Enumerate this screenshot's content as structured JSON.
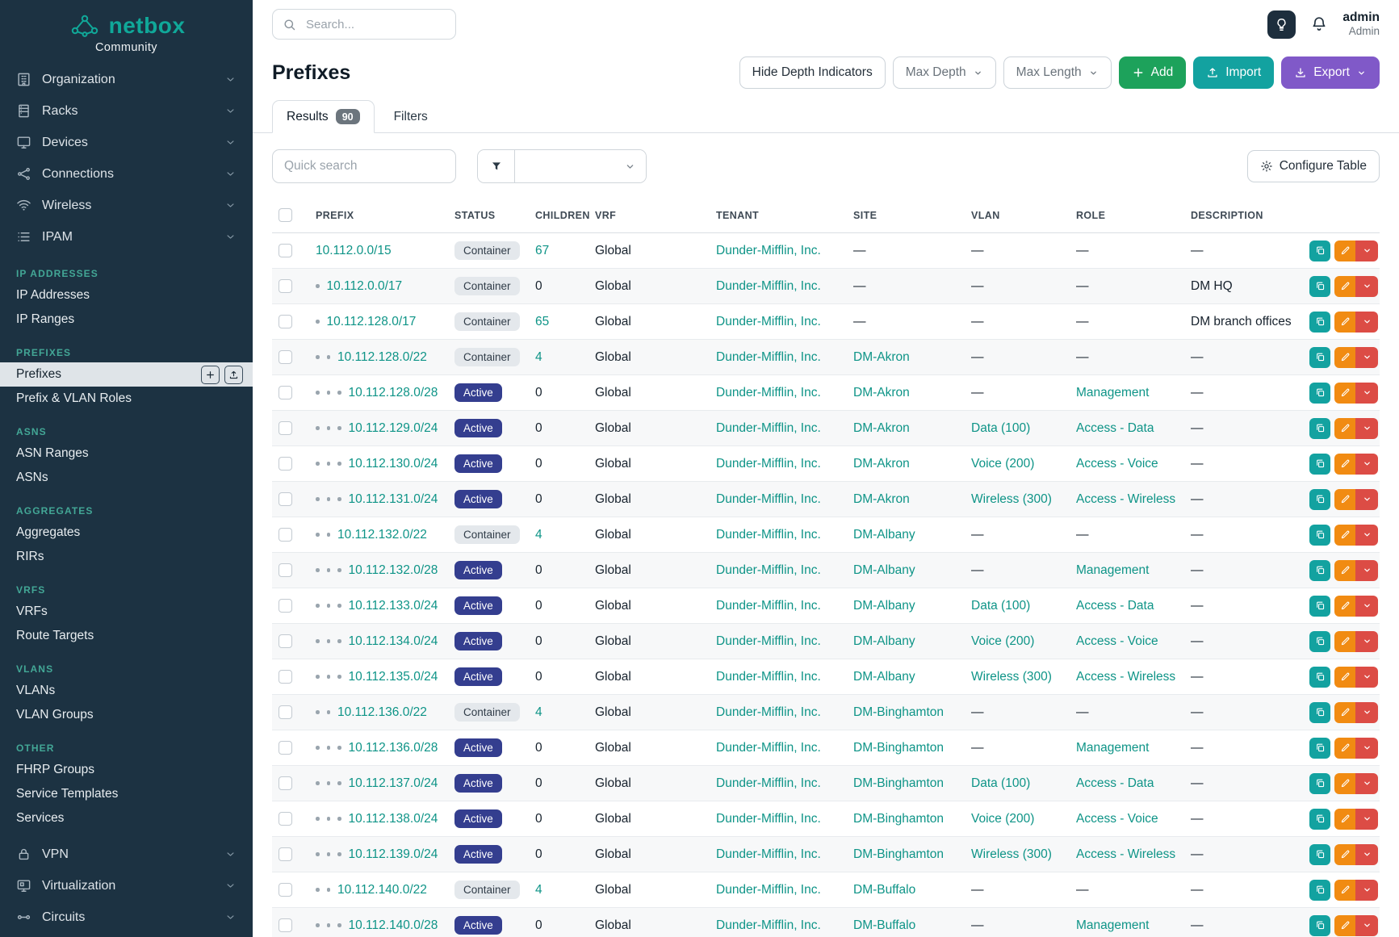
{
  "colors": {
    "accent_teal": "#0e9487",
    "brand_teal": "#10a899",
    "sidebar_bg": "#1c3242",
    "status_active_bg": "#343e8f",
    "status_container_bg": "#e4e8ec",
    "add_green": "#1da25b",
    "import_teal": "#13a2a0",
    "export_purple": "#8059c8",
    "edit_orange": "#f18b12",
    "delete_red": "#dc4c45"
  },
  "sidebar": {
    "brand": "netbox",
    "brand_subtitle": "Community",
    "top_items": [
      {
        "label": "Organization",
        "icon": "organization-icon"
      },
      {
        "label": "Racks",
        "icon": "racks-icon"
      },
      {
        "label": "Devices",
        "icon": "devices-icon"
      },
      {
        "label": "Connections",
        "icon": "connections-icon"
      },
      {
        "label": "Wireless",
        "icon": "wireless-icon"
      },
      {
        "label": "IPAM",
        "icon": "ipam-icon"
      }
    ],
    "sections": [
      {
        "header": "IP ADDRESSES",
        "items": [
          {
            "label": "IP Addresses"
          },
          {
            "label": "IP Ranges"
          }
        ]
      },
      {
        "header": "PREFIXES",
        "items": [
          {
            "label": "Prefixes",
            "active": true,
            "action_icons": [
              "plus-icon",
              "import-icon"
            ]
          },
          {
            "label": "Prefix & VLAN Roles"
          }
        ]
      },
      {
        "header": "ASNS",
        "items": [
          {
            "label": "ASN Ranges"
          },
          {
            "label": "ASNs"
          }
        ]
      },
      {
        "header": "AGGREGATES",
        "items": [
          {
            "label": "Aggregates"
          },
          {
            "label": "RIRs"
          }
        ]
      },
      {
        "header": "VRFS",
        "items": [
          {
            "label": "VRFs"
          },
          {
            "label": "Route Targets"
          }
        ]
      },
      {
        "header": "VLANS",
        "items": [
          {
            "label": "VLANs"
          },
          {
            "label": "VLAN Groups"
          }
        ]
      },
      {
        "header": "OTHER",
        "items": [
          {
            "label": "FHRP Groups"
          },
          {
            "label": "Service Templates"
          },
          {
            "label": "Services"
          }
        ]
      }
    ],
    "bottom_items": [
      {
        "label": "VPN",
        "icon": "vpn-icon"
      },
      {
        "label": "Virtualization",
        "icon": "virtualization-icon"
      },
      {
        "label": "Circuits",
        "icon": "circuits-icon"
      }
    ]
  },
  "topbar": {
    "search_placeholder": "Search...",
    "user_name": "admin",
    "user_role": "Admin"
  },
  "page": {
    "title": "Prefixes",
    "toolbar": {
      "hide_depth_label": "Hide Depth Indicators",
      "max_depth_label": "Max Depth",
      "max_length_label": "Max Length",
      "add_label": "Add",
      "import_label": "Import",
      "export_label": "Export"
    },
    "tabs": [
      {
        "label": "Results",
        "badge": "90",
        "active": true
      },
      {
        "label": "Filters",
        "active": false
      }
    ],
    "quick_search_placeholder": "Quick search",
    "configure_table_label": "Configure Table"
  },
  "table": {
    "columns": [
      "PREFIX",
      "STATUS",
      "CHILDREN",
      "VRF",
      "TENANT",
      "SITE",
      "VLAN",
      "ROLE",
      "DESCRIPTION"
    ],
    "rows": [
      {
        "prefix": "10.112.0.0/15",
        "depth": 0,
        "status": "Container",
        "children": "67",
        "vrf": "Global",
        "tenant": "Dunder-Mifflin, Inc.",
        "site": "—",
        "vlan": "—",
        "role": "—",
        "description": "—"
      },
      {
        "prefix": "10.112.0.0/17",
        "depth": 1,
        "status": "Container",
        "children": "0",
        "vrf": "Global",
        "tenant": "Dunder-Mifflin, Inc.",
        "site": "—",
        "vlan": "—",
        "role": "—",
        "description": "DM HQ"
      },
      {
        "prefix": "10.112.128.0/17",
        "depth": 1,
        "status": "Container",
        "children": "65",
        "vrf": "Global",
        "tenant": "Dunder-Mifflin, Inc.",
        "site": "—",
        "vlan": "—",
        "role": "—",
        "description": "DM branch offices"
      },
      {
        "prefix": "10.112.128.0/22",
        "depth": 2,
        "status": "Container",
        "children": "4",
        "vrf": "Global",
        "tenant": "Dunder-Mifflin, Inc.",
        "site": "DM-Akron",
        "vlan": "—",
        "role": "—",
        "description": "—"
      },
      {
        "prefix": "10.112.128.0/28",
        "depth": 3,
        "status": "Active",
        "children": "0",
        "vrf": "Global",
        "tenant": "Dunder-Mifflin, Inc.",
        "site": "DM-Akron",
        "vlan": "—",
        "role": "Management",
        "description": "—"
      },
      {
        "prefix": "10.112.129.0/24",
        "depth": 3,
        "status": "Active",
        "children": "0",
        "vrf": "Global",
        "tenant": "Dunder-Mifflin, Inc.",
        "site": "DM-Akron",
        "vlan": "Data (100)",
        "role": "Access - Data",
        "description": "—"
      },
      {
        "prefix": "10.112.130.0/24",
        "depth": 3,
        "status": "Active",
        "children": "0",
        "vrf": "Global",
        "tenant": "Dunder-Mifflin, Inc.",
        "site": "DM-Akron",
        "vlan": "Voice (200)",
        "role": "Access - Voice",
        "description": "—"
      },
      {
        "prefix": "10.112.131.0/24",
        "depth": 3,
        "status": "Active",
        "children": "0",
        "vrf": "Global",
        "tenant": "Dunder-Mifflin, Inc.",
        "site": "DM-Akron",
        "vlan": "Wireless (300)",
        "role": "Access - Wireless",
        "description": "—"
      },
      {
        "prefix": "10.112.132.0/22",
        "depth": 2,
        "status": "Container",
        "children": "4",
        "vrf": "Global",
        "tenant": "Dunder-Mifflin, Inc.",
        "site": "DM-Albany",
        "vlan": "—",
        "role": "—",
        "description": "—"
      },
      {
        "prefix": "10.112.132.0/28",
        "depth": 3,
        "status": "Active",
        "children": "0",
        "vrf": "Global",
        "tenant": "Dunder-Mifflin, Inc.",
        "site": "DM-Albany",
        "vlan": "—",
        "role": "Management",
        "description": "—"
      },
      {
        "prefix": "10.112.133.0/24",
        "depth": 3,
        "status": "Active",
        "children": "0",
        "vrf": "Global",
        "tenant": "Dunder-Mifflin, Inc.",
        "site": "DM-Albany",
        "vlan": "Data (100)",
        "role": "Access - Data",
        "description": "—"
      },
      {
        "prefix": "10.112.134.0/24",
        "depth": 3,
        "status": "Active",
        "children": "0",
        "vrf": "Global",
        "tenant": "Dunder-Mifflin, Inc.",
        "site": "DM-Albany",
        "vlan": "Voice (200)",
        "role": "Access - Voice",
        "description": "—"
      },
      {
        "prefix": "10.112.135.0/24",
        "depth": 3,
        "status": "Active",
        "children": "0",
        "vrf": "Global",
        "tenant": "Dunder-Mifflin, Inc.",
        "site": "DM-Albany",
        "vlan": "Wireless (300)",
        "role": "Access - Wireless",
        "description": "—"
      },
      {
        "prefix": "10.112.136.0/22",
        "depth": 2,
        "status": "Container",
        "children": "4",
        "vrf": "Global",
        "tenant": "Dunder-Mifflin, Inc.",
        "site": "DM-Binghamton",
        "vlan": "—",
        "role": "—",
        "description": "—"
      },
      {
        "prefix": "10.112.136.0/28",
        "depth": 3,
        "status": "Active",
        "children": "0",
        "vrf": "Global",
        "tenant": "Dunder-Mifflin, Inc.",
        "site": "DM-Binghamton",
        "vlan": "—",
        "role": "Management",
        "description": "—"
      },
      {
        "prefix": "10.112.137.0/24",
        "depth": 3,
        "status": "Active",
        "children": "0",
        "vrf": "Global",
        "tenant": "Dunder-Mifflin, Inc.",
        "site": "DM-Binghamton",
        "vlan": "Data (100)",
        "role": "Access - Data",
        "description": "—"
      },
      {
        "prefix": "10.112.138.0/24",
        "depth": 3,
        "status": "Active",
        "children": "0",
        "vrf": "Global",
        "tenant": "Dunder-Mifflin, Inc.",
        "site": "DM-Binghamton",
        "vlan": "Voice (200)",
        "role": "Access - Voice",
        "description": "—"
      },
      {
        "prefix": "10.112.139.0/24",
        "depth": 3,
        "status": "Active",
        "children": "0",
        "vrf": "Global",
        "tenant": "Dunder-Mifflin, Inc.",
        "site": "DM-Binghamton",
        "vlan": "Wireless (300)",
        "role": "Access - Wireless",
        "description": "—"
      },
      {
        "prefix": "10.112.140.0/22",
        "depth": 2,
        "status": "Container",
        "children": "4",
        "vrf": "Global",
        "tenant": "Dunder-Mifflin, Inc.",
        "site": "DM-Buffalo",
        "vlan": "—",
        "role": "—",
        "description": "—"
      },
      {
        "prefix": "10.112.140.0/28",
        "depth": 3,
        "status": "Active",
        "children": "0",
        "vrf": "Global",
        "tenant": "Dunder-Mifflin, Inc.",
        "site": "DM-Buffalo",
        "vlan": "—",
        "role": "Management",
        "description": "—"
      }
    ]
  }
}
